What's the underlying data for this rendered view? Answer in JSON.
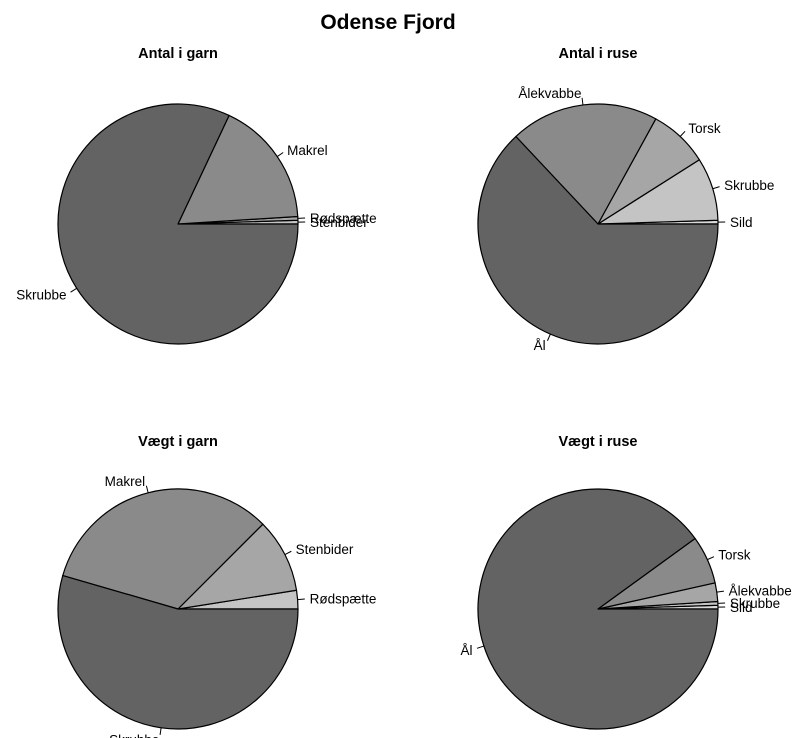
{
  "title": "Odense Fjord",
  "colors": {
    "dark": "#636363",
    "mid": "#8a8a8a",
    "light": "#a6a6a6",
    "pale": "#c4c4c4",
    "lightest": "#d9d9d9",
    "stroke": "#000000"
  },
  "chart_data": [
    {
      "type": "pie",
      "title": "Antal i garn",
      "slices": [
        {
          "label": "Stenbider",
          "value": 0.5,
          "color": "#c4c4c4"
        },
        {
          "label": "Rødspætte",
          "value": 0.5,
          "color": "#a6a6a6"
        },
        {
          "label": "Makrel",
          "value": 17,
          "color": "#8a8a8a"
        },
        {
          "label": "Skrubbe",
          "value": 82,
          "color": "#636363"
        }
      ]
    },
    {
      "type": "pie",
      "title": "Antal i ruse",
      "slices": [
        {
          "label": "Sild",
          "value": 0.5,
          "color": "#d9d9d9"
        },
        {
          "label": "Skrubbe",
          "value": 8.5,
          "color": "#c4c4c4"
        },
        {
          "label": "Torsk",
          "value": 8,
          "color": "#a6a6a6"
        },
        {
          "label": "Ålekvabbe",
          "value": 20,
          "color": "#8a8a8a"
        },
        {
          "label": "Ål",
          "value": 63,
          "color": "#636363"
        }
      ]
    },
    {
      "type": "pie",
      "title": "Vægt i garn",
      "slices": [
        {
          "label": "Rødspætte",
          "value": 2.5,
          "color": "#c4c4c4"
        },
        {
          "label": "Stenbider",
          "value": 10,
          "color": "#a6a6a6"
        },
        {
          "label": "Makrel",
          "value": 33,
          "color": "#8a8a8a"
        },
        {
          "label": "Skrubbe",
          "value": 54.5,
          "color": "#636363"
        }
      ]
    },
    {
      "type": "pie",
      "title": "Vægt i ruse",
      "slices": [
        {
          "label": "Sild",
          "value": 0.5,
          "color": "#d9d9d9"
        },
        {
          "label": "Skrubbe",
          "value": 0.5,
          "color": "#c4c4c4"
        },
        {
          "label": "Ålekvabbe",
          "value": 2.5,
          "color": "#a6a6a6"
        },
        {
          "label": "Torsk",
          "value": 6.5,
          "color": "#8a8a8a"
        },
        {
          "label": "Ål",
          "value": 90,
          "color": "#636363"
        }
      ]
    }
  ]
}
